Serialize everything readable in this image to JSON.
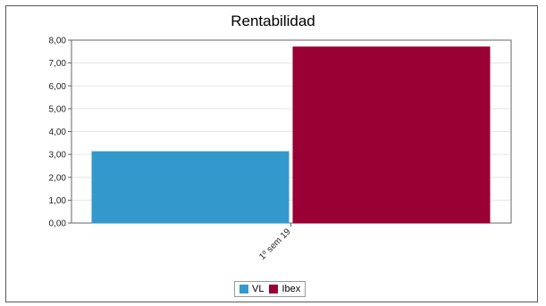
{
  "chart_data": {
    "type": "bar",
    "title": "Rentabilidad",
    "categories": [
      "1º sem 19"
    ],
    "series": [
      {
        "name": "VL",
        "values": [
          3.12
        ],
        "color": "#3399cc"
      },
      {
        "name": "Ibex",
        "values": [
          7.7
        ],
        "color": "#990033"
      }
    ],
    "yticks": [
      "0,00",
      "1,00",
      "2,00",
      "3,00",
      "4,00",
      "5,00",
      "6,00",
      "7,00",
      "8,00"
    ],
    "ylim": [
      0,
      8
    ],
    "grid": true,
    "legend_position": "bottom-center",
    "xlabel": "",
    "ylabel": ""
  }
}
